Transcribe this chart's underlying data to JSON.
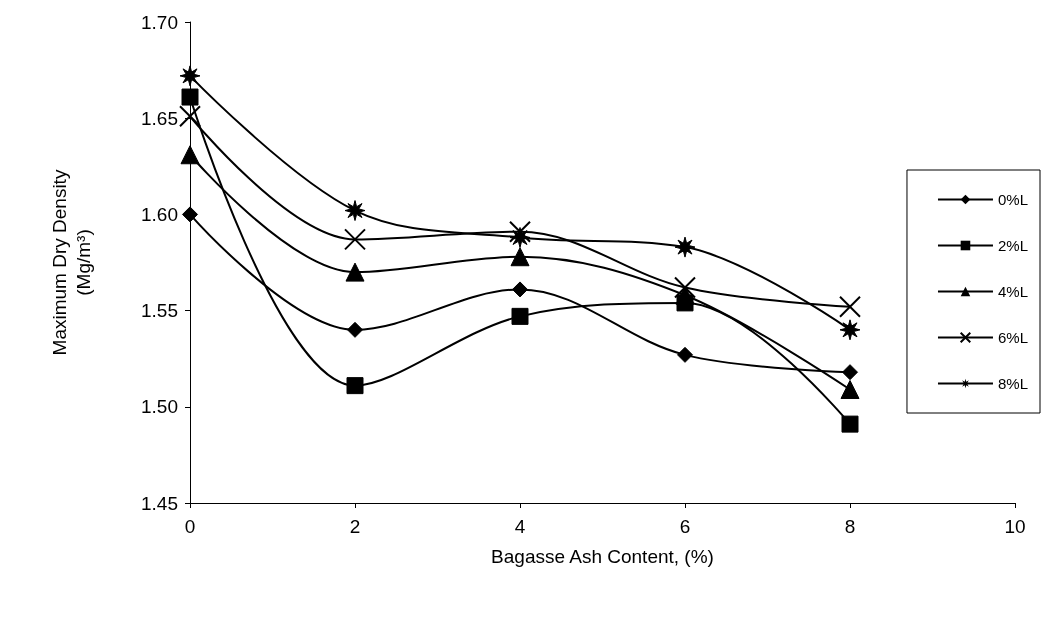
{
  "chart_data": {
    "type": "line",
    "xlabel": "Bagasse Ash Content, (%)",
    "ylabel": "Maximum Dry Density\n(Mg/m³)",
    "x": [
      0,
      2,
      4,
      6,
      8
    ],
    "series": [
      {
        "name": "0%L",
        "color": "#000000",
        "marker": "diamond",
        "values": [
          1.6,
          1.54,
          1.561,
          1.527,
          1.518
        ]
      },
      {
        "name": "2%L",
        "color": "#000000",
        "marker": "square",
        "values": [
          1.661,
          1.511,
          1.547,
          1.554,
          1.491
        ]
      },
      {
        "name": "4%L",
        "color": "#000000",
        "marker": "triangle",
        "values": [
          1.631,
          1.57,
          1.578,
          1.558,
          1.509
        ]
      },
      {
        "name": "6%L",
        "color": "#000000",
        "marker": "cross",
        "values": [
          1.651,
          1.587,
          1.591,
          1.562,
          1.552
        ]
      },
      {
        "name": "8%L",
        "color": "#000000",
        "marker": "star",
        "values": [
          1.672,
          1.602,
          1.588,
          1.583,
          1.54
        ]
      }
    ],
    "xlim": [
      0,
      10
    ],
    "xticks": [
      0,
      2,
      4,
      6,
      8,
      10
    ],
    "ylim": [
      1.45,
      1.7
    ],
    "yticks": [
      {
        "value": 1.45,
        "label": "1.45"
      },
      {
        "value": 1.5,
        "label": "1.50"
      },
      {
        "value": 1.55,
        "label": "1.55"
      },
      {
        "value": 1.6,
        "label": "1.60"
      },
      {
        "value": 1.65,
        "label": "1.65"
      },
      {
        "value": 1.7,
        "label": "1.70"
      }
    ],
    "grid": false,
    "legend": "right",
    "line_style": "solid"
  }
}
